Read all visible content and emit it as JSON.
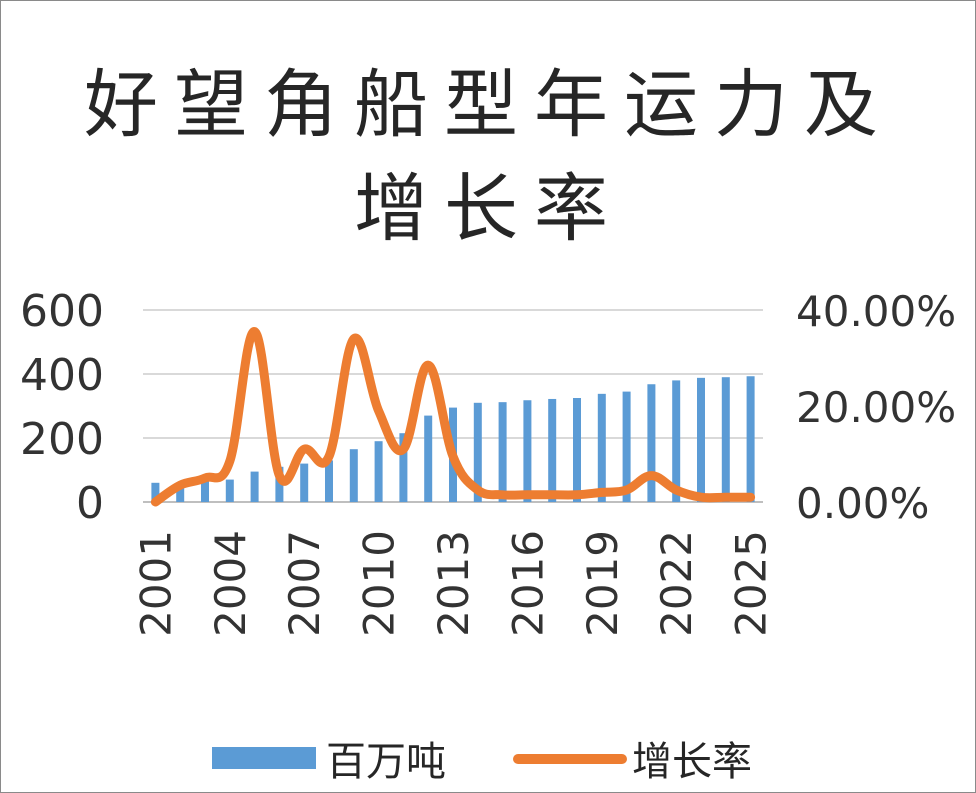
{
  "chart_data": {
    "type": "bar+line",
    "title": "好望角船型年运力及增长率",
    "categories": [
      "2001",
      "2002",
      "2003",
      "2004",
      "2005",
      "2006",
      "2007",
      "2008",
      "2009",
      "2010",
      "2011",
      "2012",
      "2013",
      "2014",
      "2015",
      "2016",
      "2017",
      "2018",
      "2019",
      "2020",
      "2021",
      "2022",
      "2023",
      "2024",
      "2025"
    ],
    "x_tick_labels": [
      "2001",
      "2004",
      "2007",
      "2010",
      "2013",
      "2016",
      "2019",
      "2022",
      "2025"
    ],
    "series": [
      {
        "name": "百万吨",
        "type": "bar",
        "axis": "left",
        "color": "#5B9BD5",
        "values": [
          60,
          60,
          65,
          70,
          95,
          110,
          120,
          130,
          165,
          190,
          215,
          270,
          295,
          310,
          312,
          318,
          322,
          325,
          338,
          345,
          368,
          380,
          388,
          390,
          393
        ]
      },
      {
        "name": "增长率",
        "type": "line",
        "axis": "right",
        "color": "#ED7D31",
        "values": [
          0.0,
          0.035,
          0.05,
          0.085,
          0.355,
          0.055,
          0.11,
          0.095,
          0.34,
          0.19,
          0.11,
          0.285,
          0.095,
          0.025,
          0.015,
          0.015,
          0.015,
          0.015,
          0.02,
          0.025,
          0.055,
          0.025,
          0.01,
          0.01,
          0.01
        ]
      }
    ],
    "y_left": {
      "ylim": [
        0,
        600
      ],
      "ticks": [
        "0",
        "200",
        "400",
        "600"
      ]
    },
    "y_right": {
      "ylim": [
        0,
        0.4
      ],
      "ticks": [
        "0.00%",
        "20.00%",
        "40.00%"
      ]
    },
    "grid": true,
    "legend_position": "bottom"
  }
}
